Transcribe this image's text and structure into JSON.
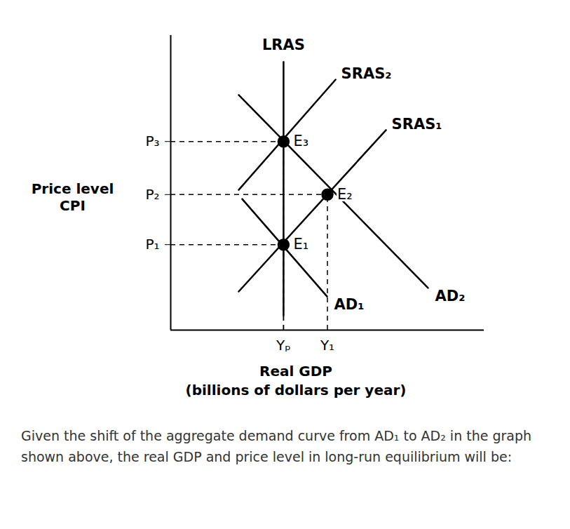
{
  "chart_data": {
    "type": "line",
    "x_label": "Real GDP\n(billions of dollars per year)",
    "y_label": "Price level\nCPI",
    "caption": "Given the shift of the aggregate demand curve from AD₁ to AD₂ in the graph shown above, the real GDP and price level in long-run equilibrium will be:",
    "xlim": [
      0,
      100
    ],
    "ylim": [
      0,
      100
    ],
    "xticks": [
      {
        "value": 36,
        "label": "Yₚ"
      },
      {
        "value": 50,
        "label": "Y₁"
      }
    ],
    "yticks": [
      {
        "value": 29,
        "label": "P₁"
      },
      {
        "value": 46,
        "label": "P₂"
      },
      {
        "value": 64,
        "label": "P₃"
      }
    ],
    "grid": false,
    "series": [
      {
        "name": "LRAS",
        "color": "#000000",
        "x": [
          36,
          36
        ],
        "values": [
          5,
          91
        ]
      },
      {
        "name": "SRAS₂",
        "color": "#000000",
        "x": [
          21.7,
          52.6
        ],
        "values": [
          47.6,
          85
        ]
      },
      {
        "name": "SRAS₁",
        "color": "#000000",
        "x": [
          21.7,
          68.7
        ],
        "values": [
          13.1,
          67.9
        ]
      },
      {
        "name": "AD₂",
        "color": "#000000",
        "x": [
          21.7,
          82.1
        ],
        "values": [
          79.8,
          14.3
        ]
      },
      {
        "name": "AD₁",
        "color": "#000000",
        "x": [
          22.8,
          49.9
        ],
        "values": [
          44.5,
          11.4
        ]
      }
    ],
    "points": [
      {
        "label": "E₁",
        "x": 36,
        "y": 29,
        "color": "#000000"
      },
      {
        "label": "E₂",
        "x": 50,
        "y": 46,
        "color": "#000000"
      },
      {
        "label": "E₃",
        "x": 36,
        "y": 64,
        "color": "#000000"
      }
    ]
  }
}
